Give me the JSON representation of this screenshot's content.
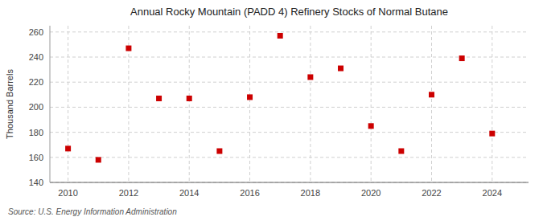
{
  "chart_data": {
    "type": "scatter",
    "title": "Annual Rocky Mountain (PADD 4) Refinery Stocks of Normal Butane",
    "ylabel": "Thousand Barrels",
    "source": "Source: U.S. Energy Information Administration",
    "x": [
      2010,
      2011,
      2012,
      2013,
      2014,
      2015,
      2016,
      2017,
      2018,
      2019,
      2020,
      2021,
      2022,
      2023,
      2024
    ],
    "values": [
      167,
      158,
      247,
      207,
      207,
      165,
      208,
      257,
      224,
      231,
      185,
      165,
      210,
      239,
      179
    ],
    "color": "#cc0000",
    "marker": "square",
    "xlim": [
      2009.4,
      2025.2
    ],
    "ylim": [
      140,
      265
    ],
    "xticks": [
      2010,
      2012,
      2014,
      2016,
      2018,
      2020,
      2022,
      2024
    ],
    "yticks": [
      140,
      160,
      180,
      200,
      220,
      240,
      260
    ],
    "grid": true
  }
}
